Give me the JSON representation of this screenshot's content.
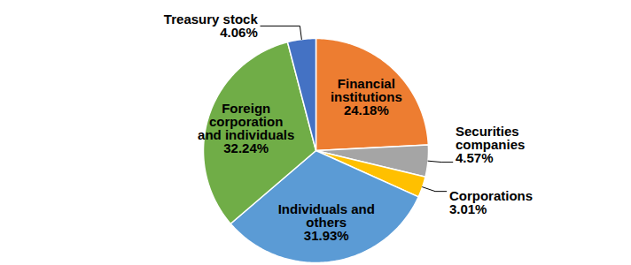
{
  "chart_data": {
    "type": "pie",
    "categories": [
      "Financial institutions",
      "Securities companies",
      "Corporations",
      "Individuals and others",
      "Foreign corporation and individuals",
      "Treasury stock"
    ],
    "values": [
      24.18,
      4.57,
      3.01,
      31.93,
      32.24,
      4.06
    ],
    "value_labels": [
      "24.18%",
      "4.57%",
      "3.01%",
      "31.93%",
      "32.24%",
      "4.06%"
    ],
    "colors": [
      "#ed7d31",
      "#a5a5a5",
      "#ffc000",
      "#5b9bd5",
      "#70ad47",
      "#4472c4"
    ],
    "data_labels": true,
    "tick_labels": false
  }
}
